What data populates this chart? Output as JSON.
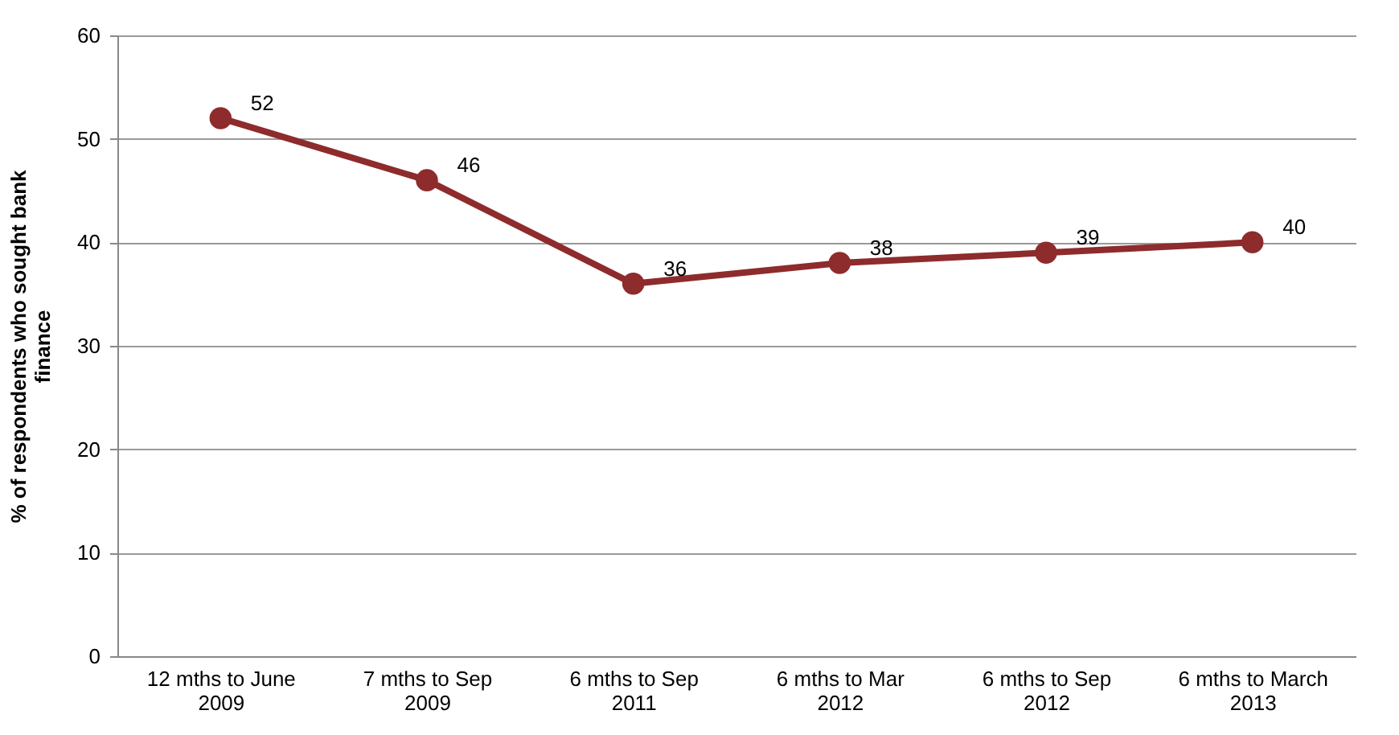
{
  "chart_data": {
    "type": "line",
    "ylabel": "% of respondents who sought bank finance",
    "categories": [
      "12 mths to June\n2009",
      "7 mths to Sep\n2009",
      "6 mths to Sep\n2011",
      "6 mths to Mar\n2012",
      "6 mths to Sep\n2012",
      "6 mths to March\n2013"
    ],
    "series": [
      {
        "color": "#8e2b2c",
        "values": [
          52,
          46,
          36,
          38,
          39,
          40
        ]
      }
    ],
    "ylim": [
      0,
      60
    ],
    "yticks": [
      0,
      10,
      20,
      30,
      40,
      50,
      60
    ],
    "grid": "y",
    "marker": "circle",
    "line_style": "solid",
    "data_labels": true
  }
}
